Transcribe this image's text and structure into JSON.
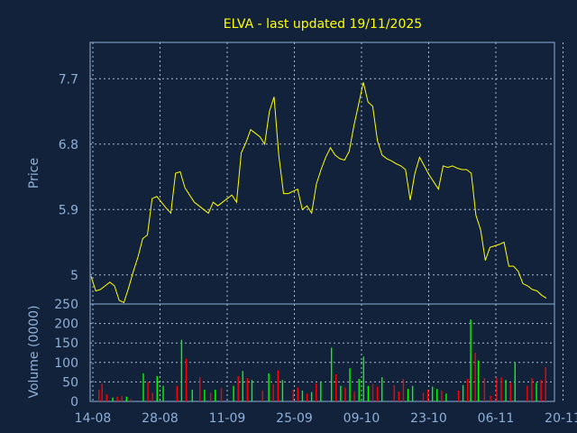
{
  "chart_data": [
    {
      "type": "line",
      "title": "ELVA - last updated 19/11/2025",
      "ylabel": "Price",
      "ylim": [
        4.6,
        8.2
      ],
      "y_ticks": [
        5,
        5.9,
        6.8,
        7.7
      ],
      "y_tick_labels": [
        "5",
        "5.9",
        "6.8",
        "7.7"
      ],
      "grid": true,
      "series": [
        {
          "color": "#ffff00",
          "values": [
            4.98,
            4.78,
            4.8,
            4.85,
            4.9,
            4.85,
            4.65,
            4.62,
            4.82,
            5.05,
            5.25,
            5.5,
            5.55,
            6.05,
            6.08,
            6.0,
            5.92,
            5.85,
            6.4,
            6.42,
            6.2,
            6.1,
            6.0,
            5.95,
            5.9,
            5.85,
            6.0,
            5.95,
            6.0,
            6.05,
            6.1,
            6.0,
            6.68,
            6.82,
            7.0,
            6.95,
            6.9,
            6.8,
            7.25,
            7.45,
            6.65,
            6.12,
            6.12,
            6.15,
            6.18,
            5.9,
            5.95,
            5.85,
            6.25,
            6.45,
            6.62,
            6.75,
            6.65,
            6.6,
            6.58,
            6.7,
            7.05,
            7.35,
            7.65,
            7.38,
            7.32,
            6.85,
            6.65,
            6.6,
            6.57,
            6.53,
            6.5,
            6.45,
            6.03,
            6.4,
            6.62,
            6.5,
            6.38,
            6.28,
            6.18,
            6.5,
            6.48,
            6.5,
            6.47,
            6.45,
            6.45,
            6.4,
            5.82,
            5.62,
            5.2,
            5.38,
            5.4,
            5.42,
            5.45,
            5.12,
            5.12,
            5.05,
            4.88,
            4.85,
            4.8,
            4.78,
            4.72,
            4.68
          ]
        }
      ]
    },
    {
      "type": "bar",
      "ylabel": "Volume (0000)",
      "ylim": [
        0,
        250
      ],
      "y_ticks": [
        0,
        50,
        100,
        150,
        200,
        250
      ],
      "y_tick_labels": [
        "0",
        "50",
        "100",
        "150",
        "200",
        "250"
      ],
      "categories": [
        "14-08",
        "28-08",
        "11-09",
        "25-09",
        "09-10",
        "23-10",
        "06-11",
        "20-11"
      ],
      "grid": true,
      "up_color": "#00ff00",
      "down_color": "#ff0000",
      "bars": [
        [
          4,
          30,
          "down"
        ],
        [
          6,
          45,
          "down"
        ],
        [
          9,
          18,
          "down"
        ],
        [
          13,
          10,
          "up"
        ],
        [
          16,
          12,
          "down"
        ],
        [
          19,
          14,
          "down"
        ],
        [
          22,
          12,
          "up"
        ],
        [
          25,
          6,
          "down"
        ],
        [
          33,
          72,
          "up"
        ],
        [
          36,
          50,
          "down"
        ],
        [
          39,
          22,
          "down"
        ],
        [
          42,
          65,
          "up"
        ],
        [
          46,
          40,
          "up"
        ],
        [
          55,
          40,
          "down"
        ],
        [
          58,
          158,
          "up"
        ],
        [
          61,
          110,
          "down"
        ],
        [
          65,
          30,
          "up"
        ],
        [
          70,
          62,
          "down"
        ],
        [
          73,
          30,
          "up"
        ],
        [
          77,
          22,
          "down"
        ],
        [
          80,
          30,
          "up"
        ],
        [
          84,
          35,
          "down"
        ],
        [
          92,
          40,
          "up"
        ],
        [
          95,
          65,
          "down"
        ],
        [
          98,
          78,
          "up"
        ],
        [
          101,
          60,
          "down"
        ],
        [
          104,
          55,
          "up"
        ],
        [
          111,
          28,
          "down"
        ],
        [
          115,
          72,
          "up"
        ],
        [
          118,
          44,
          "down"
        ],
        [
          121,
          80,
          "down"
        ],
        [
          124,
          55,
          "up"
        ],
        [
          131,
          30,
          "down"
        ],
        [
          134,
          36,
          "down"
        ],
        [
          137,
          28,
          "up"
        ],
        [
          140,
          20,
          "down"
        ],
        [
          143,
          24,
          "up"
        ],
        [
          146,
          46,
          "down"
        ],
        [
          149,
          50,
          "up"
        ],
        [
          156,
          138,
          "up"
        ],
        [
          159,
          70,
          "down"
        ],
        [
          162,
          40,
          "up"
        ],
        [
          165,
          35,
          "down"
        ],
        [
          168,
          85,
          "up"
        ],
        [
          171,
          25,
          "down"
        ],
        [
          174,
          58,
          "up"
        ],
        [
          177,
          115,
          "up"
        ],
        [
          180,
          40,
          "up"
        ],
        [
          183,
          45,
          "down"
        ],
        [
          186,
          38,
          "down"
        ],
        [
          189,
          62,
          "up"
        ],
        [
          197,
          42,
          "down"
        ],
        [
          200,
          25,
          "down"
        ],
        [
          203,
          58,
          "down"
        ],
        [
          206,
          32,
          "up"
        ],
        [
          209,
          40,
          "up"
        ],
        [
          216,
          22,
          "down"
        ],
        [
          219,
          30,
          "down"
        ],
        [
          222,
          38,
          "up"
        ],
        [
          225,
          32,
          "up"
        ],
        [
          228,
          28,
          "down"
        ],
        [
          231,
          20,
          "up"
        ],
        [
          239,
          28,
          "down"
        ],
        [
          242,
          42,
          "up"
        ],
        [
          245,
          58,
          "down"
        ],
        [
          247,
          210,
          "up"
        ],
        [
          250,
          125,
          "down"
        ],
        [
          252,
          105,
          "up"
        ],
        [
          256,
          60,
          "down"
        ],
        [
          260,
          15,
          "down"
        ],
        [
          264,
          60,
          "down"
        ],
        [
          267,
          62,
          "down"
        ],
        [
          270,
          55,
          "up"
        ],
        [
          273,
          48,
          "down"
        ],
        [
          276,
          100,
          "up"
        ],
        [
          284,
          40,
          "down"
        ],
        [
          287,
          60,
          "down"
        ],
        [
          290,
          48,
          "up"
        ],
        [
          293,
          55,
          "down"
        ],
        [
          296,
          88,
          "down"
        ]
      ]
    }
  ]
}
